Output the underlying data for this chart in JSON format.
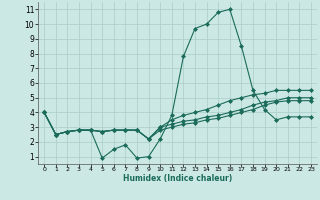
{
  "xlabel": "Humidex (Indice chaleur)",
  "xlim": [
    -0.5,
    23.5
  ],
  "ylim": [
    0.5,
    11.5
  ],
  "xticks": [
    0,
    1,
    2,
    3,
    4,
    5,
    6,
    7,
    8,
    9,
    10,
    11,
    12,
    13,
    14,
    15,
    16,
    17,
    18,
    19,
    20,
    21,
    22,
    23
  ],
  "yticks": [
    1,
    2,
    3,
    4,
    5,
    6,
    7,
    8,
    9,
    10,
    11
  ],
  "bg_color": "#cce8e4",
  "line_color": "#1a6b5a",
  "grid_color": "#aaccc8",
  "lines": [
    [
      4.0,
      2.5,
      2.7,
      2.8,
      2.8,
      0.9,
      1.5,
      1.8,
      0.9,
      1.0,
      2.2,
      3.8,
      7.8,
      9.7,
      10.0,
      10.8,
      11.0,
      8.5,
      5.5,
      4.2,
      3.5,
      3.7,
      3.7,
      3.7
    ],
    [
      4.0,
      2.5,
      2.7,
      2.8,
      2.8,
      2.7,
      2.8,
      2.8,
      2.8,
      2.2,
      3.0,
      3.5,
      3.8,
      4.0,
      4.2,
      4.5,
      4.8,
      5.0,
      5.2,
      5.3,
      5.5,
      5.5,
      5.5,
      5.5
    ],
    [
      4.0,
      2.5,
      2.7,
      2.8,
      2.8,
      2.7,
      2.8,
      2.8,
      2.8,
      2.2,
      3.0,
      3.2,
      3.4,
      3.5,
      3.7,
      3.8,
      4.0,
      4.2,
      4.5,
      4.7,
      4.8,
      5.0,
      5.0,
      5.0
    ],
    [
      4.0,
      2.5,
      2.7,
      2.8,
      2.8,
      2.7,
      2.8,
      2.8,
      2.8,
      2.2,
      2.8,
      3.0,
      3.2,
      3.3,
      3.5,
      3.6,
      3.8,
      4.0,
      4.2,
      4.5,
      4.7,
      4.8,
      4.8,
      4.8
    ]
  ],
  "marker": "D",
  "markersize": 2.0,
  "linewidth": 0.8
}
